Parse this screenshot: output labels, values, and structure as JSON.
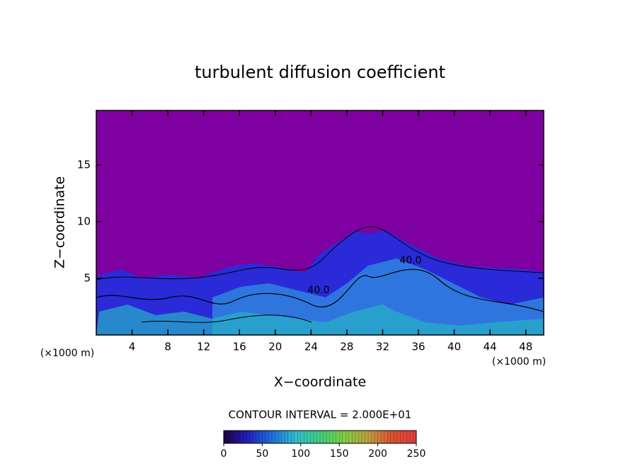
{
  "chart_data": {
    "type": "contour",
    "title": "turbulent diffusion coefficient",
    "x_label": "X−coordinate",
    "y_label": "Z−coordinate",
    "x_unit": "(×1000 m)",
    "xlim": [
      0,
      50
    ],
    "xticks": [
      4,
      8,
      12,
      16,
      20,
      24,
      28,
      32,
      36,
      40,
      44,
      48
    ],
    "ylim": [
      0,
      19.8
    ],
    "yticks": [
      5,
      10,
      15
    ],
    "background_color": "#7f00a0",
    "contour_labels": [
      "40.0",
      "40.0"
    ],
    "contour_interval_text": "CONTOUR INTERVAL = 2.000E+01",
    "colorbar": {
      "lim": [
        0,
        250
      ],
      "ticks": [
        0,
        50,
        100,
        150,
        200,
        250
      ],
      "colors": [
        "#200040",
        "#2020c0",
        "#2070e0",
        "#30c0d0",
        "#40d080",
        "#80d040",
        "#c0a040",
        "#e05030",
        "#e04040"
      ]
    }
  }
}
